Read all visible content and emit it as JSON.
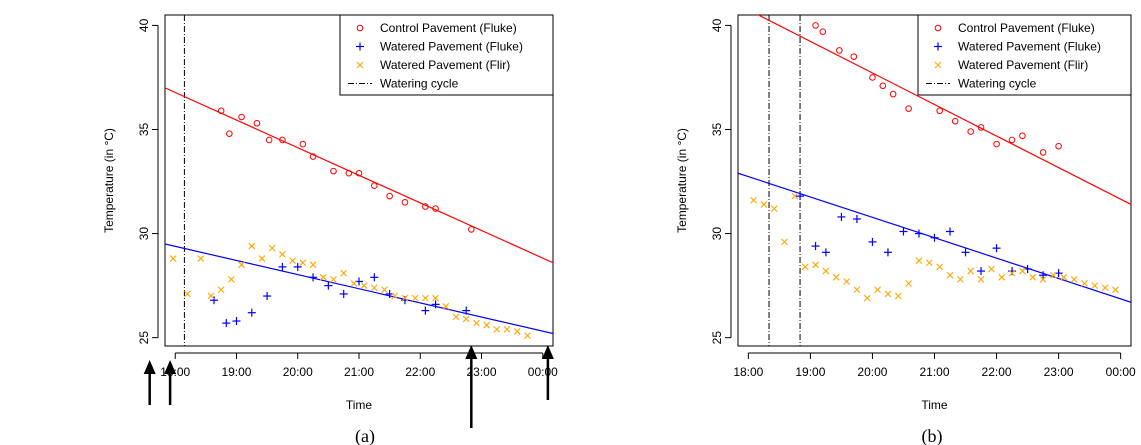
{
  "chart_data": [
    {
      "type": "scatter",
      "panel_label": "(a)",
      "xlabel": "Time",
      "ylabel": "Temperature (in °C)",
      "xlim": [
        "17:50",
        "00:10"
      ],
      "ylim": [
        24.6,
        40.5
      ],
      "x_ticks": [
        "18:00",
        "19:00",
        "20:00",
        "21:00",
        "22:00",
        "23:00",
        "00:00"
      ],
      "y_ticks": [
        25,
        30,
        35,
        40
      ],
      "legend_position": "top-right",
      "legend": [
        "Control Pavement (Fluke)",
        "Watered Pavement (Fluke)",
        "Watered Pavement (Flir)",
        "Watering cycle"
      ],
      "colors": {
        "control": "#ff0000",
        "watered_fluke": "#0000ff",
        "watered_flir": "#ffa500",
        "cycle": "#000000"
      },
      "watering_cycles": [
        "18:09"
      ],
      "series": [
        {
          "name": "Control Pavement (Fluke)",
          "marker": "circle",
          "points": [
            [
              "18:45",
              35.9
            ],
            [
              "18:53",
              34.8
            ],
            [
              "19:05",
              35.6
            ],
            [
              "19:20",
              35.3
            ],
            [
              "19:32",
              34.5
            ],
            [
              "19:45",
              34.5
            ],
            [
              "20:05",
              34.3
            ],
            [
              "20:15",
              33.7
            ],
            [
              "20:35",
              33.0
            ],
            [
              "20:50",
              32.9
            ],
            [
              "21:00",
              32.9
            ],
            [
              "21:15",
              32.3
            ],
            [
              "21:30",
              31.8
            ],
            [
              "21:45",
              31.5
            ],
            [
              "22:05",
              31.3
            ],
            [
              "22:15",
              31.2
            ],
            [
              "22:50",
              30.2
            ]
          ],
          "fit": [
            [
              "17:50",
              37.0
            ],
            [
              "00:10",
              28.6
            ]
          ]
        },
        {
          "name": "Watered Pavement (Fluke)",
          "marker": "plus",
          "points": [
            [
              "18:38",
              26.8
            ],
            [
              "18:50",
              25.7
            ],
            [
              "19:00",
              25.8
            ],
            [
              "19:15",
              26.2
            ],
            [
              "19:30",
              27.0
            ],
            [
              "19:45",
              28.4
            ],
            [
              "20:00",
              28.4
            ],
            [
              "20:15",
              27.9
            ],
            [
              "20:30",
              27.5
            ],
            [
              "20:45",
              27.1
            ],
            [
              "21:00",
              27.7
            ],
            [
              "21:15",
              27.9
            ],
            [
              "21:30",
              27.1
            ],
            [
              "21:45",
              26.8
            ],
            [
              "22:05",
              26.3
            ],
            [
              "22:15",
              26.6
            ],
            [
              "22:45",
              26.3
            ]
          ],
          "fit": [
            [
              "17:50",
              29.5
            ],
            [
              "00:10",
              25.2
            ]
          ]
        },
        {
          "name": "Watered Pavement (Flir)",
          "marker": "x",
          "points": [
            [
              "17:58",
              28.8
            ],
            [
              "18:12",
              27.1
            ],
            [
              "18:25",
              28.8
            ],
            [
              "18:35",
              27.0
            ],
            [
              "18:45",
              27.3
            ],
            [
              "18:55",
              27.8
            ],
            [
              "19:05",
              28.5
            ],
            [
              "19:15",
              29.4
            ],
            [
              "19:25",
              28.8
            ],
            [
              "19:35",
              29.3
            ],
            [
              "19:45",
              29.0
            ],
            [
              "19:55",
              28.7
            ],
            [
              "20:05",
              28.6
            ],
            [
              "20:15",
              28.5
            ],
            [
              "20:25",
              27.9
            ],
            [
              "20:35",
              27.8
            ],
            [
              "20:45",
              28.1
            ],
            [
              "20:55",
              27.6
            ],
            [
              "21:05",
              27.5
            ],
            [
              "21:15",
              27.4
            ],
            [
              "21:25",
              27.3
            ],
            [
              "21:35",
              27.0
            ],
            [
              "21:45",
              26.9
            ],
            [
              "21:55",
              26.9
            ],
            [
              "22:05",
              26.9
            ],
            [
              "22:15",
              26.9
            ],
            [
              "22:25",
              26.5
            ],
            [
              "22:35",
              26.0
            ],
            [
              "22:45",
              25.9
            ],
            [
              "22:55",
              25.7
            ],
            [
              "23:05",
              25.6
            ],
            [
              "23:15",
              25.4
            ],
            [
              "23:25",
              25.4
            ],
            [
              "23:35",
              25.3
            ],
            [
              "23:45",
              25.1
            ]
          ],
          "fit": []
        }
      ]
    },
    {
      "type": "scatter",
      "panel_label": "(b)",
      "xlabel": "Time",
      "ylabel": "Temperature (in °C)",
      "xlim": [
        "17:50",
        "00:10"
      ],
      "ylim": [
        24.6,
        40.5
      ],
      "x_ticks": [
        "18:00",
        "19:00",
        "20:00",
        "21:00",
        "22:00",
        "23:00",
        "00:00"
      ],
      "y_ticks": [
        25,
        30,
        35,
        40
      ],
      "legend_position": "top-right",
      "legend": [
        "Control Pavement (Fluke)",
        "Watered Pavement (Fluke)",
        "Watered Pavement (Flir)",
        "Watering cycle"
      ],
      "colors": {
        "control": "#ff0000",
        "watered_fluke": "#0000ff",
        "watered_flir": "#ffa500",
        "cycle": "#000000"
      },
      "watering_cycles": [
        "18:20",
        "18:50"
      ],
      "series": [
        {
          "name": "Control Pavement (Fluke)",
          "marker": "circle",
          "points": [
            [
              "19:05",
              40.0
            ],
            [
              "19:12",
              39.7
            ],
            [
              "19:28",
              38.8
            ],
            [
              "19:42",
              38.5
            ],
            [
              "20:00",
              37.5
            ],
            [
              "20:10",
              37.1
            ],
            [
              "20:20",
              36.7
            ],
            [
              "20:35",
              36.0
            ],
            [
              "20:55",
              37.0
            ],
            [
              "21:05",
              35.9
            ],
            [
              "21:20",
              35.4
            ],
            [
              "21:35",
              34.9
            ],
            [
              "21:45",
              35.1
            ],
            [
              "22:00",
              34.3
            ],
            [
              "22:15",
              34.5
            ],
            [
              "22:25",
              34.7
            ],
            [
              "22:45",
              33.9
            ],
            [
              "23:00",
              34.2
            ]
          ],
          "fit": [
            [
              "17:50",
              41.0
            ],
            [
              "00:10",
              31.4
            ]
          ]
        },
        {
          "name": "Watered Pavement (Fluke)",
          "marker": "plus",
          "points": [
            [
              "18:50",
              31.8
            ],
            [
              "19:05",
              29.4
            ],
            [
              "19:15",
              29.1
            ],
            [
              "19:30",
              30.8
            ],
            [
              "19:45",
              30.7
            ],
            [
              "20:00",
              29.6
            ],
            [
              "20:15",
              29.1
            ],
            [
              "20:30",
              30.1
            ],
            [
              "20:45",
              30.0
            ],
            [
              "21:00",
              29.8
            ],
            [
              "21:15",
              30.1
            ],
            [
              "21:30",
              29.1
            ],
            [
              "21:45",
              28.2
            ],
            [
              "22:00",
              29.3
            ],
            [
              "22:15",
              28.2
            ],
            [
              "22:30",
              28.3
            ],
            [
              "22:45",
              28.0
            ],
            [
              "23:00",
              28.1
            ]
          ],
          "fit": [
            [
              "17:50",
              32.9
            ],
            [
              "00:10",
              26.7
            ]
          ]
        },
        {
          "name": "Watered Pavement (Flir)",
          "marker": "x",
          "points": [
            [
              "18:05",
              31.6
            ],
            [
              "18:15",
              31.4
            ],
            [
              "18:25",
              31.2
            ],
            [
              "18:35",
              29.6
            ],
            [
              "18:45",
              31.8
            ],
            [
              "18:55",
              28.4
            ],
            [
              "19:05",
              28.5
            ],
            [
              "19:15",
              28.2
            ],
            [
              "19:25",
              27.9
            ],
            [
              "19:35",
              27.7
            ],
            [
              "19:45",
              27.3
            ],
            [
              "19:55",
              26.9
            ],
            [
              "20:05",
              27.3
            ],
            [
              "20:15",
              27.1
            ],
            [
              "20:25",
              27.0
            ],
            [
              "20:35",
              27.6
            ],
            [
              "20:45",
              28.7
            ],
            [
              "20:55",
              28.6
            ],
            [
              "21:05",
              28.4
            ],
            [
              "21:15",
              28.0
            ],
            [
              "21:25",
              27.8
            ],
            [
              "21:35",
              28.2
            ],
            [
              "21:45",
              27.8
            ],
            [
              "21:55",
              28.3
            ],
            [
              "22:05",
              27.9
            ],
            [
              "22:15",
              28.1
            ],
            [
              "22:25",
              28.2
            ],
            [
              "22:35",
              27.9
            ],
            [
              "22:45",
              27.8
            ],
            [
              "22:55",
              28.0
            ],
            [
              "23:05",
              27.9
            ],
            [
              "23:15",
              27.8
            ],
            [
              "23:25",
              27.6
            ],
            [
              "23:35",
              27.5
            ],
            [
              "23:45",
              27.4
            ],
            [
              "23:55",
              27.3
            ]
          ],
          "fit": []
        }
      ]
    }
  ],
  "annotations": {
    "arrow_times": [
      "17:35",
      "17:55",
      "22:50",
      "00:05"
    ]
  }
}
